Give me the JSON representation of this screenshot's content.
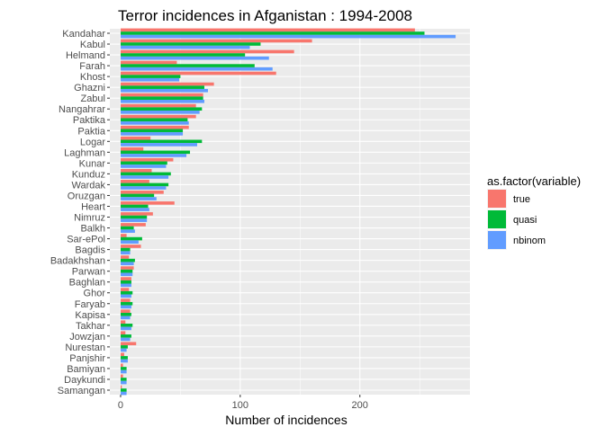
{
  "chart_data": {
    "type": "bar",
    "orientation": "horizontal",
    "title": "Terror incidences in Afganistan : 1994-2008",
    "xlabel": "Number of incidences",
    "ylabel": "",
    "xlim": [
      -9,
      292
    ],
    "x_ticks": [
      0,
      100,
      200
    ],
    "grid": true,
    "legend": {
      "title": "as.factor(variable)",
      "position": "right"
    },
    "categories": [
      "Kandahar",
      "Kabul",
      "Helmand",
      "Farah",
      "Khost",
      "Ghazni",
      "Zabul",
      "Nangahrar",
      "Paktika",
      "Paktia",
      "Logar",
      "Laghman",
      "Kunar",
      "Kunduz",
      "Wardak",
      "Oruzgan",
      "Heart",
      "Nimruz",
      "Balkh",
      "Sar-ePol",
      "Bagdis",
      "Badakhshan",
      "Parwan",
      "Baghlan",
      "Ghor",
      "Faryab",
      "Kapisa",
      "Takhar",
      "Jowzjan",
      "Nurestan",
      "Panjshir",
      "Bamiyan",
      "Daykundi",
      "Samangan"
    ],
    "series": [
      {
        "name": "true",
        "color": "#F8766D",
        "values": [
          246,
          160,
          145,
          47,
          130,
          78,
          69,
          63,
          63,
          57,
          25,
          19,
          44,
          26,
          24,
          36,
          45,
          27,
          21,
          5,
          17,
          7,
          11,
          9,
          7,
          8,
          8,
          4,
          4,
          13,
          3,
          2,
          2,
          1
        ]
      },
      {
        "name": "quasi",
        "color": "#00BA38",
        "values": [
          254,
          117,
          104,
          112,
          50,
          70,
          69,
          68,
          56,
          52,
          68,
          58,
          39,
          42,
          40,
          28,
          23,
          22,
          11,
          18,
          8,
          12,
          10,
          9,
          10,
          10,
          9,
          10,
          9,
          6,
          6,
          5,
          5,
          5
        ]
      },
      {
        "name": "nbinom",
        "color": "#619CFF",
        "values": [
          280,
          108,
          124,
          127,
          49,
          73,
          70,
          66,
          57,
          52,
          64,
          55,
          38,
          40,
          38,
          30,
          24,
          22,
          12,
          15,
          8,
          11,
          10,
          9,
          9,
          9,
          8,
          9,
          8,
          5,
          6,
          5,
          5,
          5
        ]
      }
    ]
  }
}
